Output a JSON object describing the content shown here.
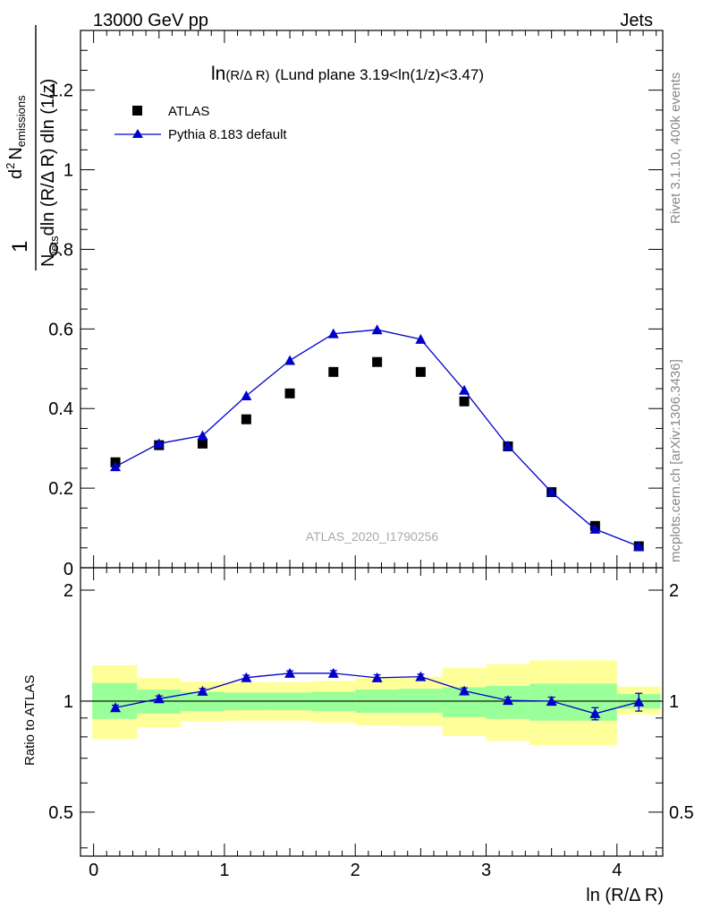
{
  "header": {
    "energy_label": "13000 GeV pp",
    "process_label": "Jets"
  },
  "side_labels": {
    "rivet": "Rivet 3.1.10,  400k events",
    "mcplots": "mcplots.cern.ch [arXiv:1306.3436]"
  },
  "watermark": "ATLAS_2020_I1790256",
  "colors": {
    "mc": "#0000cc",
    "band_inner": "#99ff99",
    "band_outer": "#ffff99",
    "data": "#000000"
  },
  "chart_data": [
    {
      "type": "scatter",
      "panel": "main",
      "title": "ln(R/Δ R) (Lund plane 3.19<ln(1/z)<3.47)",
      "title_main": "ln",
      "title_small": "(R/Δ R)",
      "title_rest": "(Lund plane 3.19<ln(1/z)<3.47)",
      "ylabel_parts": {
        "numerator_left": "1",
        "num_d2": "d",
        "num_sup": "2",
        "num_N": "N",
        "num_sub": "emissions",
        "den_N": "N",
        "den_sub": "jets",
        "den_rest": "dln (R/Δ R) dln (1/z)"
      },
      "xlim": [
        -0.1,
        4.35
      ],
      "ylim": [
        0,
        1.35
      ],
      "yticks": [
        0.2,
        0.4,
        0.6,
        0.8,
        1.0,
        1.2
      ],
      "ytick_labels": [
        "0.2",
        "0.4",
        "0.6",
        "0.8",
        "1",
        "1.2"
      ],
      "y_zero_label": "0",
      "x": [
        0.167,
        0.5,
        0.833,
        1.167,
        1.5,
        1.833,
        2.167,
        2.5,
        2.833,
        3.167,
        3.5,
        3.833,
        4.167
      ],
      "series": [
        {
          "name": "ATLAS",
          "marker": "square",
          "values": [
            0.265,
            0.308,
            0.312,
            0.373,
            0.438,
            0.492,
            0.517,
            0.492,
            0.418,
            0.305,
            0.19,
            0.105,
            0.054
          ]
        },
        {
          "name": "Pythia 8.183 default",
          "marker": "triangle",
          "values": [
            0.254,
            0.312,
            0.332,
            0.432,
            0.521,
            0.588,
            0.598,
            0.574,
            0.446,
            0.306,
            0.19,
            0.097,
            0.054
          ],
          "errors": [
            0.004,
            0.006,
            0.006,
            0.007,
            0.008,
            0.01,
            0.011,
            0.009,
            0.008,
            0.007,
            0.005,
            0.004,
            0.003
          ]
        }
      ],
      "legend": [
        "ATLAS",
        "Pythia 8.183 default"
      ],
      "legend_position": "top-left"
    },
    {
      "type": "scatter",
      "panel": "ratio",
      "ylabel": "Ratio to ATLAS",
      "xlabel": "ln (R/Δ R)",
      "xlim": [
        -0.1,
        4.35
      ],
      "ylim": [
        0.38,
        2.3
      ],
      "yticks": [
        0.5,
        1,
        2
      ],
      "ytick_labels": [
        "0.5",
        "1",
        "2"
      ],
      "xticks": [
        0,
        1,
        2,
        3,
        4
      ],
      "xtick_labels": [
        "0",
        "1",
        "2",
        "3",
        "4"
      ],
      "bins": [
        [
          -0.01,
          0.333
        ],
        [
          0.333,
          0.667
        ],
        [
          0.667,
          1.0
        ],
        [
          1.0,
          1.333
        ],
        [
          1.333,
          1.667
        ],
        [
          1.667,
          2.0
        ],
        [
          2.0,
          2.333
        ],
        [
          2.333,
          2.667
        ],
        [
          2.667,
          3.0
        ],
        [
          3.0,
          3.333
        ],
        [
          3.333,
          3.667
        ],
        [
          3.667,
          4.0
        ],
        [
          4.0,
          4.333
        ]
      ],
      "band_inner": [
        [
          0.895,
          1.12
        ],
        [
          0.925,
          1.075
        ],
        [
          0.94,
          1.06
        ],
        [
          0.945,
          1.055
        ],
        [
          0.945,
          1.055
        ],
        [
          0.94,
          1.06
        ],
        [
          0.93,
          1.075
        ],
        [
          0.93,
          1.08
        ],
        [
          0.905,
          1.09
        ],
        [
          0.895,
          1.1
        ],
        [
          0.885,
          1.115
        ],
        [
          0.885,
          1.115
        ],
        [
          0.955,
          1.045
        ]
      ],
      "band_outer": [
        [
          0.79,
          1.25
        ],
        [
          0.85,
          1.155
        ],
        [
          0.88,
          1.13
        ],
        [
          0.885,
          1.125
        ],
        [
          0.885,
          1.125
        ],
        [
          0.875,
          1.135
        ],
        [
          0.86,
          1.155
        ],
        [
          0.855,
          1.165
        ],
        [
          0.805,
          1.23
        ],
        [
          0.78,
          1.26
        ],
        [
          0.76,
          1.29
        ],
        [
          0.76,
          1.29
        ],
        [
          0.92,
          1.095
        ]
      ],
      "x": [
        0.167,
        0.5,
        0.833,
        1.167,
        1.5,
        1.833,
        2.167,
        2.5,
        2.833,
        3.167,
        3.5,
        3.833,
        4.167
      ],
      "ratio": [
        0.96,
        1.015,
        1.064,
        1.158,
        1.19,
        1.19,
        1.157,
        1.165,
        1.066,
        1.005,
        1.0,
        0.925,
        0.995
      ],
      "ratio_errors": [
        0.015,
        0.018,
        0.018,
        0.018,
        0.018,
        0.02,
        0.022,
        0.018,
        0.02,
        0.02,
        0.025,
        0.035,
        0.055
      ]
    }
  ]
}
